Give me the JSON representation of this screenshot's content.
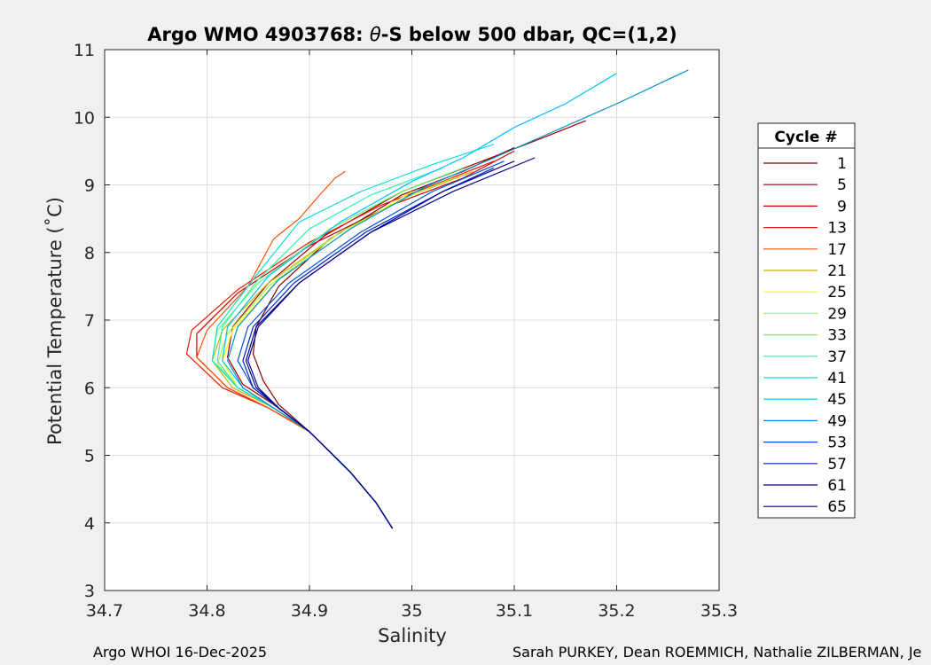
{
  "chart_data": {
    "type": "line",
    "title": "Argo WMO 4903768: θ-S below 500 dbar,  QC=(1,2)",
    "title_parts": {
      "prefix": "Argo WMO 4903768: ",
      "theta": "θ",
      "suffix": "-S below 500 dbar,  QC=(1,2)"
    },
    "xlabel": "Salinity",
    "ylabel": "Potential Temperature (˚C)",
    "xlim": [
      34.7,
      35.3
    ],
    "ylim": [
      3,
      11
    ],
    "xticks": [
      "34.7",
      "34.8",
      "34.9",
      "35",
      "35.1",
      "35.2",
      "35.3"
    ],
    "yticks": [
      "3",
      "4",
      "5",
      "6",
      "7",
      "8",
      "9",
      "10",
      "11"
    ],
    "grid": true,
    "legend": {
      "title": "Cycle #",
      "position": "right",
      "entries": [
        {
          "label": "1",
          "color": "#800000"
        },
        {
          "label": "5",
          "color": "#a00000"
        },
        {
          "label": "9",
          "color": "#cc0000"
        },
        {
          "label": "13",
          "color": "#e81a00"
        },
        {
          "label": "17",
          "color": "#ff5000"
        },
        {
          "label": "21",
          "color": "#c8b400"
        },
        {
          "label": "25",
          "color": "#ffff00"
        },
        {
          "label": "29",
          "color": "#a0ff40"
        },
        {
          "label": "33",
          "color": "#60ff70"
        },
        {
          "label": "37",
          "color": "#30f0b0"
        },
        {
          "label": "41",
          "color": "#10e0d0"
        },
        {
          "label": "45",
          "color": "#00c0ff"
        },
        {
          "label": "49",
          "color": "#0090d0"
        },
        {
          "label": "53",
          "color": "#0050e0"
        },
        {
          "label": "57",
          "color": "#0020c0"
        },
        {
          "label": "61",
          "color": "#000090"
        },
        {
          "label": "65",
          "color": "#00008f"
        }
      ]
    },
    "series": [
      {
        "name": "1",
        "color": "#800000",
        "s": [
          34.981,
          34.965,
          34.94,
          34.9,
          34.87,
          34.855,
          34.845,
          34.848,
          34.87,
          34.92,
          34.99,
          35.05,
          35.1
        ],
        "t": [
          3.92,
          4.3,
          4.75,
          5.35,
          5.75,
          6.1,
          6.5,
          6.9,
          7.5,
          8.2,
          8.85,
          9.2,
          9.55
        ]
      },
      {
        "name": "5",
        "color": "#a00000",
        "s": [
          34.981,
          34.965,
          34.94,
          34.9,
          34.865,
          34.835,
          34.82,
          34.825,
          34.86,
          34.915,
          34.99,
          35.06,
          35.12,
          35.17
        ],
        "t": [
          3.92,
          4.3,
          4.75,
          5.35,
          5.75,
          6.05,
          6.45,
          6.9,
          7.55,
          8.25,
          8.9,
          9.3,
          9.65,
          9.95
        ]
      },
      {
        "name": "9",
        "color": "#cc0000",
        "s": [
          34.981,
          34.965,
          34.94,
          34.9,
          34.86,
          34.82,
          34.79,
          34.79,
          34.83,
          34.9,
          34.98,
          35.05,
          35.1
        ],
        "t": [
          3.92,
          4.3,
          4.75,
          5.35,
          5.7,
          6.0,
          6.45,
          6.8,
          7.4,
          8.1,
          8.7,
          9.1,
          9.5
        ]
      },
      {
        "name": "13",
        "color": "#e81a00",
        "s": [
          34.981,
          34.965,
          34.94,
          34.9,
          34.86,
          34.815,
          34.78,
          34.785,
          34.83,
          34.9,
          34.97,
          35.03,
          35.08
        ],
        "t": [
          3.92,
          4.3,
          4.75,
          5.35,
          5.7,
          6.0,
          6.5,
          6.85,
          7.45,
          8.15,
          8.7,
          9.05,
          9.35
        ]
      },
      {
        "name": "17",
        "color": "#ff5000",
        "s": [
          34.981,
          34.965,
          34.94,
          34.9,
          34.86,
          34.82,
          34.79,
          34.8,
          34.84,
          34.865,
          34.89,
          34.91,
          34.925,
          34.935
        ],
        "t": [
          3.92,
          4.3,
          4.75,
          5.35,
          5.7,
          6.0,
          6.45,
          6.85,
          7.5,
          8.2,
          8.5,
          8.85,
          9.1,
          9.2
        ]
      },
      {
        "name": "21",
        "color": "#c8b400",
        "s": [
          34.981,
          34.965,
          34.94,
          34.9,
          34.865,
          34.825,
          34.805,
          34.815,
          34.86,
          34.93,
          35.0,
          35.06
        ],
        "t": [
          3.92,
          4.3,
          4.75,
          5.35,
          5.7,
          6.0,
          6.4,
          6.85,
          7.55,
          8.3,
          8.85,
          9.2
        ]
      },
      {
        "name": "25",
        "color": "#ffff00",
        "s": [
          34.981,
          34.965,
          34.94,
          34.9,
          34.865,
          34.83,
          34.815,
          34.825,
          34.87,
          34.94,
          35.0
        ],
        "t": [
          3.92,
          4.3,
          4.75,
          5.35,
          5.7,
          6.0,
          6.4,
          6.85,
          7.6,
          8.35,
          8.9
        ]
      },
      {
        "name": "29",
        "color": "#a0ff40",
        "s": [
          34.981,
          34.965,
          34.94,
          34.9,
          34.865,
          34.83,
          34.81,
          34.82,
          34.86,
          34.93,
          35.0,
          35.04
        ],
        "t": [
          3.92,
          4.3,
          4.75,
          5.35,
          5.7,
          6.0,
          6.35,
          6.8,
          7.5,
          8.3,
          8.85,
          9.1
        ]
      },
      {
        "name": "33",
        "color": "#60ff70",
        "s": [
          34.981,
          34.965,
          34.94,
          34.9,
          34.865,
          34.83,
          34.805,
          34.81,
          34.85,
          34.92,
          34.99,
          35.05
        ],
        "t": [
          3.92,
          4.3,
          4.75,
          5.35,
          5.7,
          6.0,
          6.4,
          6.85,
          7.55,
          8.35,
          8.9,
          9.25
        ]
      },
      {
        "name": "37",
        "color": "#30f0b0",
        "s": [
          34.981,
          34.965,
          34.94,
          34.9,
          34.865,
          34.83,
          34.81,
          34.815,
          34.85,
          34.9,
          34.96,
          35.03
        ],
        "t": [
          3.92,
          4.3,
          4.75,
          5.35,
          5.7,
          6.0,
          6.4,
          6.9,
          7.6,
          8.35,
          8.85,
          9.25
        ]
      },
      {
        "name": "41",
        "color": "#10e0d0",
        "s": [
          34.981,
          34.965,
          34.94,
          34.9,
          34.865,
          34.83,
          34.805,
          34.81,
          34.85,
          34.89,
          34.95,
          35.02,
          35.08
        ],
        "t": [
          3.92,
          4.3,
          4.75,
          5.35,
          5.7,
          6.0,
          6.4,
          6.9,
          7.7,
          8.45,
          8.9,
          9.3,
          9.6
        ]
      },
      {
        "name": "45",
        "color": "#00c0ff",
        "s": [
          34.981,
          34.965,
          34.94,
          34.9,
          34.865,
          34.835,
          34.815,
          34.82,
          34.86,
          34.93,
          35.0,
          35.05,
          35.1,
          35.15,
          35.2
        ],
        "t": [
          3.92,
          4.3,
          4.75,
          5.35,
          5.7,
          6.0,
          6.4,
          6.9,
          7.65,
          8.45,
          9.05,
          9.4,
          9.85,
          10.2,
          10.65
        ]
      },
      {
        "name": "49",
        "color": "#0090d0",
        "s": [
          34.981,
          34.965,
          34.94,
          34.9,
          34.865,
          34.835,
          34.82,
          34.83,
          34.87,
          34.94,
          35.01,
          35.08,
          35.14,
          35.2,
          35.27
        ],
        "t": [
          3.92,
          4.3,
          4.75,
          5.35,
          5.7,
          6.0,
          6.4,
          6.9,
          7.6,
          8.35,
          8.95,
          9.4,
          9.8,
          10.2,
          10.7
        ]
      },
      {
        "name": "53",
        "color": "#0050e0",
        "s": [
          34.981,
          34.965,
          34.94,
          34.9,
          34.87,
          34.845,
          34.83,
          34.84,
          34.88,
          34.95,
          35.02,
          35.09
        ],
        "t": [
          3.92,
          4.3,
          4.75,
          5.35,
          5.7,
          6.0,
          6.4,
          6.9,
          7.55,
          8.3,
          8.9,
          9.35
        ]
      },
      {
        "name": "57",
        "color": "#0020c0",
        "s": [
          34.981,
          34.965,
          34.94,
          34.9,
          34.87,
          34.845,
          34.835,
          34.845,
          34.885,
          34.955,
          35.03,
          35.08
        ],
        "t": [
          3.92,
          4.3,
          4.75,
          5.35,
          5.7,
          6.0,
          6.4,
          6.9,
          7.55,
          8.3,
          8.9,
          9.25
        ]
      },
      {
        "name": "61",
        "color": "#000090",
        "s": [
          34.981,
          34.965,
          34.94,
          34.9,
          34.87,
          34.848,
          34.838,
          34.848,
          34.89,
          34.96,
          35.03,
          35.1
        ],
        "t": [
          3.92,
          4.3,
          4.75,
          5.35,
          5.7,
          6.0,
          6.4,
          6.9,
          7.55,
          8.3,
          8.9,
          9.35
        ]
      },
      {
        "name": "65",
        "color": "#00008f",
        "s": [
          34.981,
          34.965,
          34.94,
          34.9,
          34.87,
          34.85,
          34.84,
          34.85,
          34.89,
          34.96,
          35.04,
          35.12
        ],
        "t": [
          3.92,
          4.3,
          4.75,
          5.35,
          5.7,
          6.0,
          6.4,
          6.9,
          7.55,
          8.3,
          8.9,
          9.4
        ]
      }
    ]
  },
  "footer": {
    "left": "Argo WHOI 16-Dec-2025",
    "right": "Sarah PURKEY, Dean ROEMMICH, Nathalie ZILBERMAN, Je"
  }
}
